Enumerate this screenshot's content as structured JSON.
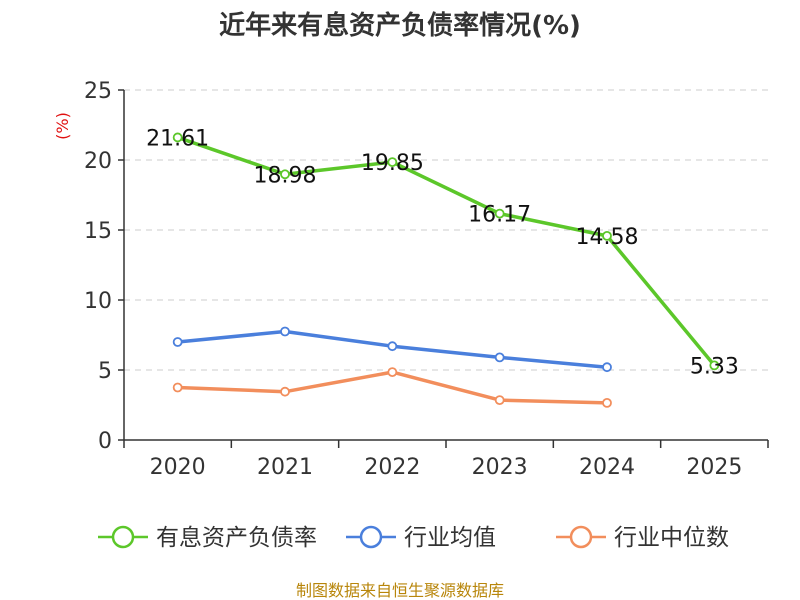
{
  "chart_data": {
    "type": "line",
    "title": "近年来有息资产负债率情况(%)",
    "ylabel": "(%)",
    "xlabel": "",
    "categories": [
      "2020",
      "2021",
      "2022",
      "2023",
      "2024",
      "2025"
    ],
    "yticks": [
      "0",
      "5",
      "10",
      "15",
      "20",
      "25"
    ],
    "ylim": [
      0,
      25
    ],
    "grid": true,
    "legend_position": "bottom",
    "series": [
      {
        "name": "有息资产负债率",
        "color": "#5cc72a",
        "values": [
          21.61,
          18.98,
          19.85,
          16.17,
          14.58,
          5.33
        ],
        "labels": [
          "21.61",
          "18.98",
          "19.85",
          "16.17",
          "14.58",
          "5.33"
        ]
      },
      {
        "name": "行业均值",
        "color": "#4a7fdc",
        "values": [
          7.0,
          7.75,
          6.7,
          5.9,
          5.2,
          null
        ]
      },
      {
        "name": "行业中位数",
        "color": "#f28e5c",
        "values": [
          3.75,
          3.45,
          4.85,
          2.85,
          2.65,
          null
        ]
      }
    ],
    "source": "制图数据来自恒生聚源数据库"
  }
}
